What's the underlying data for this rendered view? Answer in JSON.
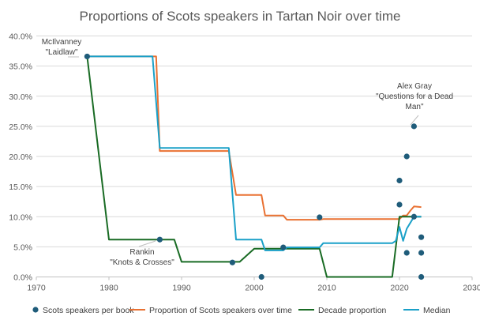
{
  "chart_data": {
    "type": "line",
    "title": "Proportions of Scots speakers in Tartan Noir over time",
    "xlabel": "",
    "ylabel": "",
    "xlim": [
      1970,
      2030
    ],
    "ylim": [
      0,
      0.4
    ],
    "x_ticks": [
      1970,
      1980,
      1990,
      2000,
      2010,
      2020,
      2030
    ],
    "y_ticks": [
      0,
      0.05,
      0.1,
      0.15,
      0.2,
      0.25,
      0.3,
      0.35,
      0.4
    ],
    "x_tick_labels": [
      "1970",
      "1980",
      "1990",
      "2000",
      "2010",
      "2020",
      "2030"
    ],
    "y_tick_labels": [
      "0.0%",
      "5.0%",
      "10.0%",
      "15.0%",
      "20.0%",
      "25.0%",
      "30.0%",
      "35.0%",
      "40.0%"
    ],
    "grid": "horizontal",
    "legend_position": "bottom",
    "colors": {
      "scatter": "#1f5c7a",
      "proportion": "#e97132",
      "decade": "#196b24",
      "median": "#1aa0c8",
      "grid": "#d9d9d9",
      "axis": "#bfbfbf"
    },
    "series": [
      {
        "name": "Scots speakers per book",
        "kind": "scatter",
        "points": [
          [
            1977,
            0.366
          ],
          [
            1987,
            0.062
          ],
          [
            1997,
            0.024
          ],
          [
            2001,
            0.0
          ],
          [
            2004,
            0.049
          ],
          [
            2009,
            0.099
          ],
          [
            2020,
            0.16
          ],
          [
            2020,
            0.12
          ],
          [
            2021,
            0.2
          ],
          [
            2021,
            0.04
          ],
          [
            2022,
            0.25
          ],
          [
            2022,
            0.1
          ],
          [
            2023,
            0.066
          ],
          [
            2023,
            0.04
          ],
          [
            2023,
            0.0
          ]
        ]
      },
      {
        "name": "Proportion of Scots speakers over time",
        "kind": "line",
        "points": [
          [
            1977,
            0.366
          ],
          [
            1986.5,
            0.366
          ],
          [
            1987,
            0.209
          ],
          [
            1996.5,
            0.209
          ],
          [
            1997.5,
            0.136
          ],
          [
            2001,
            0.136
          ],
          [
            2001.5,
            0.102
          ],
          [
            2004,
            0.102
          ],
          [
            2004.5,
            0.095
          ],
          [
            2009,
            0.095
          ],
          [
            2009.5,
            0.096
          ],
          [
            2020,
            0.096
          ],
          [
            2020.5,
            0.102
          ],
          [
            2021,
            0.102
          ],
          [
            2021.5,
            0.11
          ],
          [
            2022,
            0.117
          ],
          [
            2023,
            0.116
          ]
        ]
      },
      {
        "name": "Decade proportion",
        "kind": "line",
        "points": [
          [
            1977,
            0.366
          ],
          [
            1980,
            0.062
          ],
          [
            1989,
            0.062
          ],
          [
            1990,
            0.025
          ],
          [
            1998,
            0.025
          ],
          [
            2000,
            0.047
          ],
          [
            2009,
            0.047
          ],
          [
            2010,
            0.0
          ],
          [
            2019,
            0.0
          ],
          [
            2020,
            0.1
          ],
          [
            2023,
            0.1
          ]
        ]
      },
      {
        "name": "Median",
        "kind": "line",
        "points": [
          [
            1977,
            0.366
          ],
          [
            1986,
            0.366
          ],
          [
            1987,
            0.214
          ],
          [
            1996.5,
            0.214
          ],
          [
            1997.5,
            0.062
          ],
          [
            2001,
            0.062
          ],
          [
            2001.5,
            0.044
          ],
          [
            2004,
            0.044
          ],
          [
            2004.5,
            0.049
          ],
          [
            2009,
            0.049
          ],
          [
            2009.5,
            0.056
          ],
          [
            2019,
            0.056
          ],
          [
            2019.5,
            0.06
          ],
          [
            2020,
            0.083
          ],
          [
            2020.5,
            0.06
          ],
          [
            2021,
            0.08
          ],
          [
            2022,
            0.1
          ],
          [
            2023,
            0.1
          ]
        ]
      }
    ],
    "annotations": [
      {
        "lines": [
          "McIlvanney",
          "\"Laidlaw\""
        ],
        "x": 1977,
        "y": 0.366
      },
      {
        "lines": [
          "Rankin",
          "\"Knots & Crosses\""
        ],
        "x": 1987,
        "y": 0.062
      },
      {
        "lines": [
          "Alex Gray",
          "\"Questions for a Dead",
          "Man\""
        ],
        "x": 2022,
        "y": 0.25
      }
    ]
  }
}
